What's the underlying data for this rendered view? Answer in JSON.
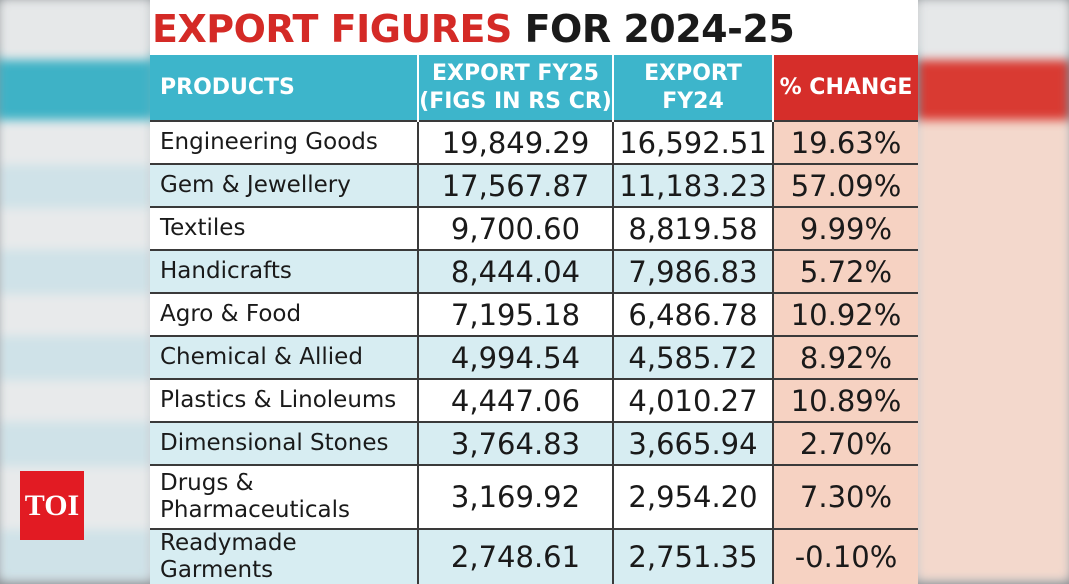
{
  "branding": {
    "logo_text": "TOI",
    "logo_color": "#e21b23"
  },
  "title": {
    "part1": "EXPORT FIGURES",
    "part2": "FOR 2024-25",
    "accent_color": "#d42a26"
  },
  "table": {
    "headers": {
      "products": "PRODUCTS",
      "fy25_line1": "EXPORT FY25",
      "fy25_line2": "(FIGS IN RS CR)",
      "fy24_line1": "EXPORT",
      "fy24_line2": "FY24",
      "change": "% CHANGE"
    },
    "header_color": "#3db5cb",
    "change_header_color": "#d62e2a",
    "rows": [
      {
        "product": "Engineering Goods",
        "fy25": "19,849.29",
        "fy24": "16,592.51",
        "change": "19.63%"
      },
      {
        "product": "Gem & Jewellery",
        "fy25": "17,567.87",
        "fy24": "11,183.23",
        "change": "57.09%"
      },
      {
        "product": "Textiles",
        "fy25": "9,700.60",
        "fy24": "8,819.58",
        "change": "9.99%"
      },
      {
        "product": "Handicrafts",
        "fy25": "8,444.04",
        "fy24": "7,986.83",
        "change": "5.72%"
      },
      {
        "product": "Agro & Food",
        "fy25": "7,195.18",
        "fy24": "6,486.78",
        "change": "10.92%"
      },
      {
        "product": "Chemical & Allied",
        "fy25": "4,994.54",
        "fy24": "4,585.72",
        "change": "8.92%"
      },
      {
        "product": "Plastics & Linoleums",
        "fy25": "4,447.06",
        "fy24": "4,010.27",
        "change": "10.89%"
      },
      {
        "product": "Dimensional Stones",
        "fy25": "3,764.83",
        "fy24": "3,665.94",
        "change": "2.70%"
      },
      {
        "product_line1": "Drugs &",
        "product_line2": "Pharmaceuticals",
        "fy25": "3,169.92",
        "fy24": "2,954.20",
        "change": "7.30%"
      },
      {
        "product": "Readymade Garments",
        "fy25": "2,748.61",
        "fy24": "2,751.35",
        "change": "-0.10%"
      }
    ]
  }
}
